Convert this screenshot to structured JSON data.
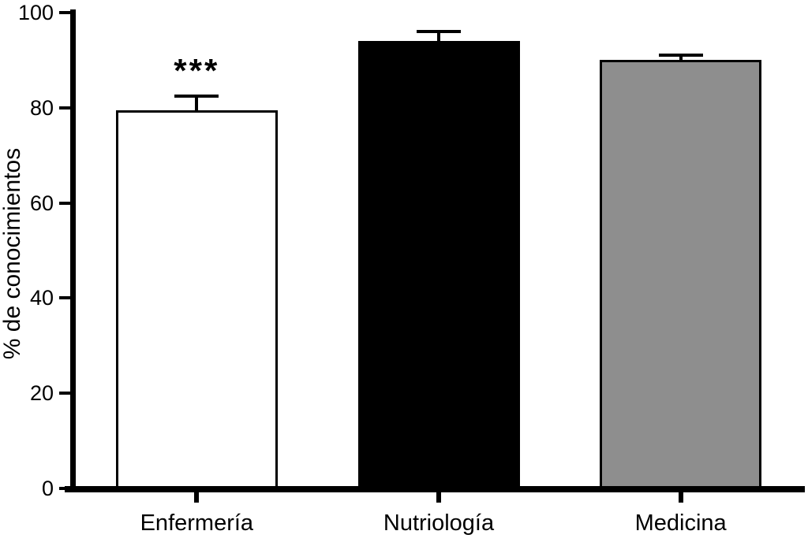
{
  "chart_data": {
    "type": "bar",
    "title": "",
    "xlabel": "",
    "ylabel": "% de conocimientos",
    "ylim": [
      0,
      100
    ],
    "yticks": [
      0,
      20,
      40,
      60,
      80,
      100
    ],
    "categories": [
      "Enfermería",
      "Nutriología",
      "Medicina"
    ],
    "values": [
      79.5,
      94,
      90
    ],
    "errors": [
      3,
      2,
      1
    ],
    "bar_colors": [
      "#ffffff",
      "#000000",
      "#8e8e8e"
    ],
    "grid": false,
    "legend": "none",
    "annotations": [
      {
        "category": "Enfermería",
        "text": "***"
      }
    ]
  }
}
